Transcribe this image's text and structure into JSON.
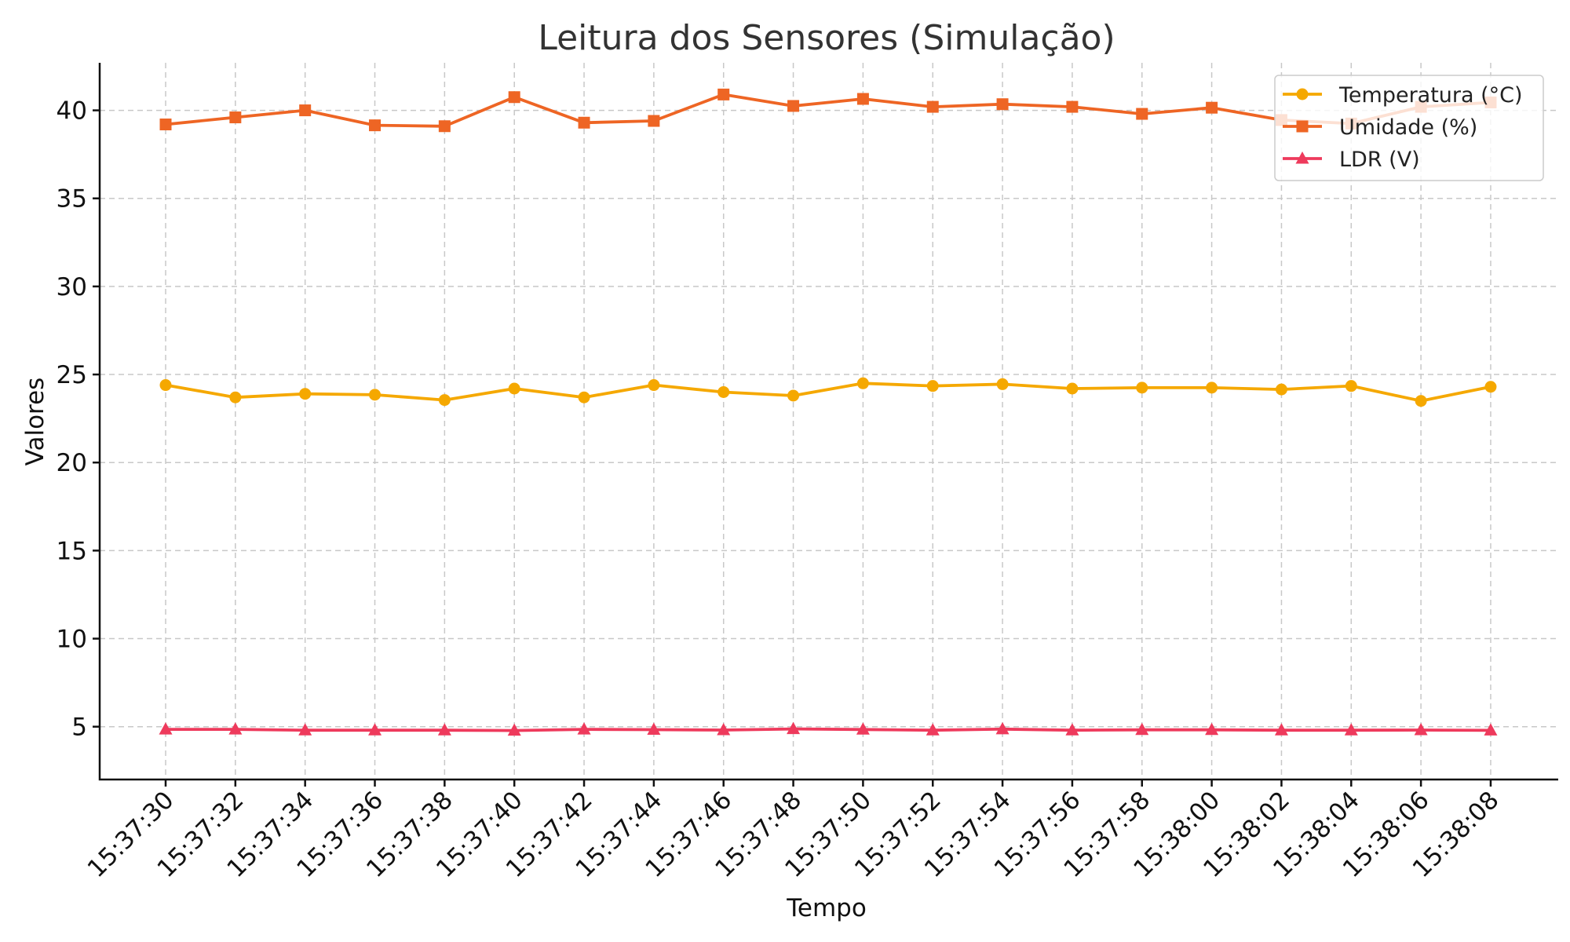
{
  "chart_data": {
    "type": "line",
    "title": "Leitura dos Sensores (Simulação)",
    "xlabel": "Tempo",
    "ylabel": "Valores",
    "x": [
      "15:37:30",
      "15:37:32",
      "15:37:34",
      "15:37:36",
      "15:37:38",
      "15:37:40",
      "15:37:42",
      "15:37:44",
      "15:37:46",
      "15:37:48",
      "15:37:50",
      "15:37:52",
      "15:37:54",
      "15:37:56",
      "15:37:58",
      "15:38:00",
      "15:38:02",
      "15:38:04",
      "15:38:06",
      "15:38:08"
    ],
    "ylim": [
      2.0,
      42.7
    ],
    "yticks": [
      5,
      10,
      15,
      20,
      25,
      30,
      35,
      40
    ],
    "grid": true,
    "legend_position": "top-right",
    "series": [
      {
        "name": "Temperatura (°C)",
        "color": "#F5A800",
        "marker": "circle",
        "values": [
          24.4,
          23.7,
          23.9,
          23.85,
          23.55,
          24.2,
          23.7,
          24.4,
          24.0,
          23.8,
          24.5,
          24.35,
          24.45,
          24.2,
          24.25,
          24.25,
          24.15,
          24.35,
          23.5,
          24.3
        ]
      },
      {
        "name": "Umidade (%)",
        "color": "#EE6524",
        "marker": "square",
        "values": [
          39.2,
          39.6,
          40.0,
          39.15,
          39.1,
          40.75,
          39.3,
          39.4,
          40.9,
          40.25,
          40.65,
          40.2,
          40.35,
          40.2,
          39.8,
          40.15,
          39.45,
          39.25,
          40.2,
          40.45
        ]
      },
      {
        "name": "LDR (V)",
        "color": "#EE3A5C",
        "marker": "triangle",
        "values": [
          4.85,
          4.85,
          4.8,
          4.8,
          4.8,
          4.78,
          4.85,
          4.83,
          4.81,
          4.87,
          4.84,
          4.8,
          4.86,
          4.8,
          4.82,
          4.82,
          4.8,
          4.8,
          4.81,
          4.79
        ]
      }
    ]
  }
}
